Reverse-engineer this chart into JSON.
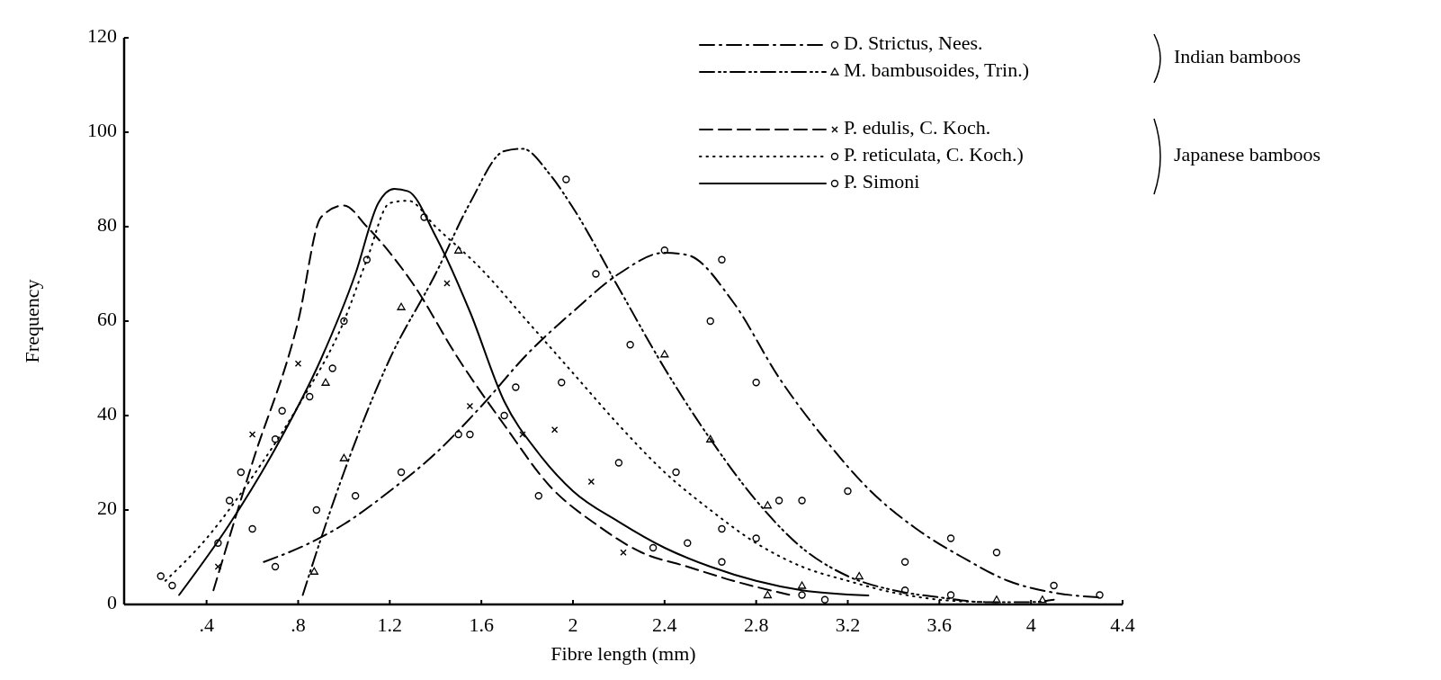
{
  "chart_data": {
    "type": "line",
    "xlabel": "Fibre length (mm)",
    "ylabel": "Frequency",
    "xlim": [
      0.04,
      4.4
    ],
    "xticks": [
      {
        "value": 0.4,
        "label": ".4"
      },
      {
        "value": 0.8,
        "label": ".8"
      },
      1.2,
      1.6,
      2,
      2.4,
      2.8,
      3.2,
      3.6,
      4,
      4.4
    ],
    "ylim": [
      0,
      120
    ],
    "yticks": [
      0,
      20,
      40,
      60,
      80,
      100,
      120
    ],
    "grid": false,
    "legend": "top right",
    "annotations": [
      "Indian bamboos",
      "Japanese bamboos"
    ],
    "series": [
      {
        "name": "D. Strictus, Nees.",
        "type": "line",
        "color": "#000000",
        "line_style": "dashdot",
        "x": [
          0.65,
          0.85,
          1.0,
          1.2,
          1.4,
          1.6,
          1.8,
          2.0,
          2.2,
          2.4,
          2.5,
          2.7,
          2.9,
          3.1,
          3.3,
          3.5,
          3.7,
          3.9,
          4.1,
          4.3
        ],
        "values": [
          9,
          13,
          17,
          24,
          32,
          42,
          53,
          62,
          70,
          74.5,
          74,
          64,
          48,
          35,
          24,
          16,
          10,
          5,
          2.5,
          1.5
        ]
      },
      {
        "type": "scatter",
        "color": "#000000",
        "marker": "circle",
        "x": [
          0.88,
          1.05,
          1.25,
          1.5,
          1.97,
          2.1,
          2.25,
          2.4,
          2.6,
          2.65,
          2.8,
          3.0,
          3.2,
          3.45,
          3.65,
          3.85,
          4.1,
          4.3
        ],
        "values": [
          20,
          23,
          28,
          36,
          90,
          70,
          55,
          75,
          60,
          73,
          47,
          22,
          24,
          9,
          14,
          11,
          4,
          2
        ]
      },
      {
        "name": "M. bambusoides, Trin.)",
        "type": "line",
        "color": "#000000",
        "line_style": "dashdotdot",
        "x": [
          0.82,
          0.9,
          1.0,
          1.2,
          1.4,
          1.55,
          1.7,
          1.78,
          1.9,
          2.0,
          2.2,
          2.4,
          2.6,
          2.8,
          3.0,
          3.2,
          3.4,
          3.6,
          3.8,
          4.0,
          4.1
        ],
        "values": [
          2,
          14,
          28,
          52,
          70,
          85,
          96,
          96.5,
          91,
          84,
          67,
          50,
          35,
          22,
          12,
          6,
          3,
          1.5,
          0.5,
          0.5,
          1
        ]
      },
      {
        "type": "scatter",
        "color": "#000000",
        "marker": "triangle",
        "x": [
          0.87,
          0.92,
          1.0,
          1.25,
          1.5,
          2.4,
          2.6,
          2.85,
          2.85,
          3.0,
          3.25,
          3.85,
          4.05
        ],
        "values": [
          7,
          47,
          31,
          63,
          75,
          53,
          35,
          21,
          2,
          4,
          6,
          1,
          1
        ]
      },
      {
        "name": "P. edulis, C. Koch.",
        "type": "line",
        "color": "#000000",
        "line_style": "dashed",
        "x": [
          0.43,
          0.6,
          0.8,
          0.9,
          1.0,
          1.1,
          1.3,
          1.5,
          1.7,
          1.9,
          2.1,
          2.3,
          2.5,
          2.7,
          2.95
        ],
        "values": [
          3,
          30,
          60,
          82,
          84.5,
          80,
          68,
          52,
          38,
          25,
          17,
          11,
          8,
          5,
          2
        ]
      },
      {
        "type": "scatter",
        "color": "#000000",
        "marker": "cross",
        "x": [
          0.45,
          0.6,
          0.8,
          1.45,
          1.55,
          1.78,
          1.92,
          2.08,
          2.22
        ],
        "values": [
          8,
          36,
          51,
          68,
          42,
          36,
          37,
          26,
          11
        ]
      },
      {
        "name": "P. reticulata, C. Koch.)",
        "type": "line",
        "color": "#000000",
        "line_style": "dotted",
        "x": [
          0.22,
          0.4,
          0.6,
          0.8,
          1.0,
          1.1,
          1.2,
          1.28,
          1.4,
          1.6,
          1.8,
          2.0,
          2.2,
          2.4,
          2.6,
          2.8,
          3.0,
          3.2,
          3.4,
          3.6,
          3.8
        ],
        "values": [
          5,
          14,
          27,
          42,
          60,
          73,
          85,
          85.5,
          80,
          71,
          60,
          49,
          38,
          28,
          20,
          13,
          8,
          5,
          2.5,
          1,
          0.5
        ]
      },
      {
        "type": "scatter",
        "color": "#000000",
        "marker": "circle",
        "x": [
          0.2,
          0.55,
          0.85,
          1.55,
          1.75,
          2.2,
          2.45,
          2.9
        ],
        "values": [
          6,
          28,
          44,
          36,
          46,
          30,
          28,
          22
        ]
      },
      {
        "name": "P. Simoni",
        "type": "line",
        "color": "#000000",
        "line_style": "solid",
        "x": [
          0.28,
          0.5,
          0.7,
          0.9,
          1.05,
          1.15,
          1.22,
          1.28,
          1.4,
          1.55,
          1.7,
          1.85,
          2.0,
          2.2,
          2.4,
          2.6,
          2.8,
          3.0,
          3.29
        ],
        "values": [
          2,
          17,
          33,
          52,
          70,
          85,
          88,
          87.5,
          78,
          62,
          43,
          32,
          24,
          17.5,
          12,
          8,
          5,
          3,
          1.9
        ]
      },
      {
        "type": "scatter",
        "color": "#000000",
        "marker": "circle",
        "x": [
          0.25,
          0.45,
          0.5,
          0.6,
          0.7,
          0.73,
          0.7,
          0.95,
          1.0,
          1.1,
          1.35,
          1.7,
          1.85,
          1.95,
          2.35,
          2.5,
          2.65,
          2.65,
          2.8,
          3.0,
          3.1,
          3.45,
          3.65
        ],
        "values": [
          4,
          13,
          22,
          16,
          8,
          41,
          35,
          50,
          60,
          73,
          82,
          40,
          23,
          47,
          12,
          13,
          9,
          16,
          14,
          2,
          1,
          3,
          2
        ]
      }
    ]
  }
}
